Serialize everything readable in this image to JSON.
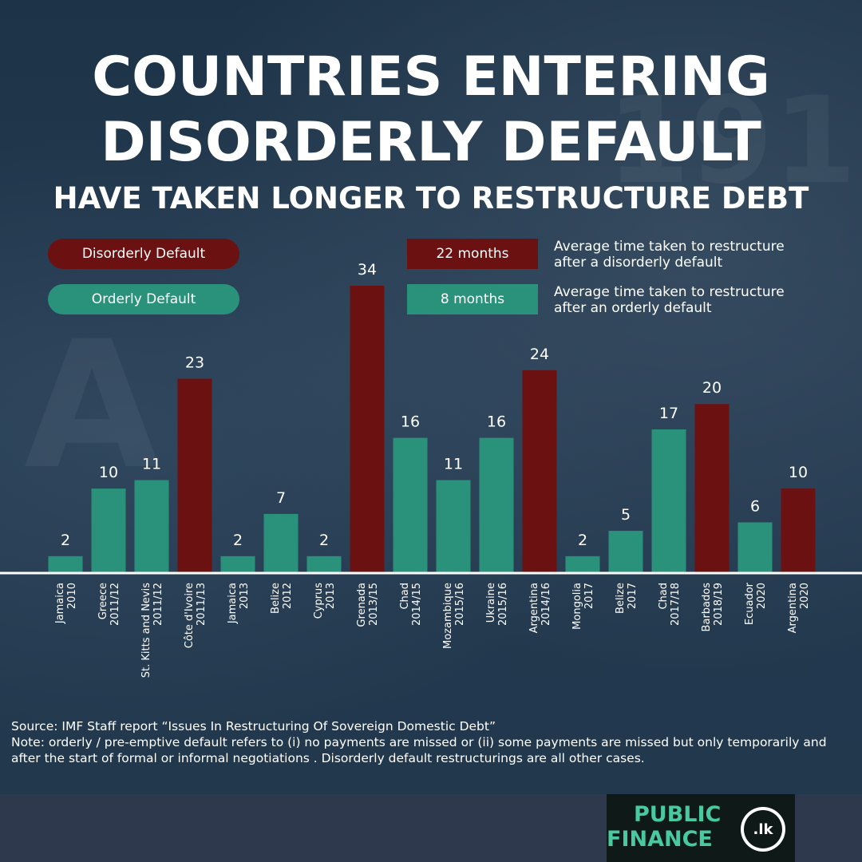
{
  "title": {
    "line1": "COUNTRIES ENTERING",
    "line2": "DISORDERLY DEFAULT",
    "subtitle": "HAVE TAKEN LONGER TO RESTRUCTURE DEBT"
  },
  "legend": {
    "disorderly_label": "Disorderly Default",
    "orderly_label": "Orderly Default",
    "disorderly_avg": "22 months",
    "orderly_avg": "8 months",
    "disorderly_desc_line1": "Average time taken to restructure",
    "disorderly_desc_line2": "after a disorderly default",
    "orderly_desc_line1": "Average time taken to restructure",
    "orderly_desc_line2": "after an orderly default"
  },
  "colors": {
    "disorderly": "#6b1112",
    "orderly": "#2a917a",
    "background": "#1f3448",
    "footer": "#2e394d",
    "logo_green": "#49c9a0"
  },
  "chart_data": {
    "type": "bar",
    "title": "COUNTRIES ENTERING DISORDERLY DEFAULT HAVE TAKEN LONGER TO RESTRUCTURE DEBT",
    "xlabel": "",
    "ylabel": "",
    "ylim": [
      0,
      34
    ],
    "grid": false,
    "legend_position": "top-left",
    "series_names": [
      "Disorderly Default",
      "Orderly Default"
    ],
    "categories": [
      {
        "country": "Jamaica",
        "period": "2010"
      },
      {
        "country": "Greece",
        "period": "2011/12"
      },
      {
        "country": "St. Kitts and Nevis",
        "period": "2011/12"
      },
      {
        "country": "Côte d'Ivoire",
        "period": "2011/13"
      },
      {
        "country": "Jamaica",
        "period": "2013"
      },
      {
        "country": "Belize",
        "period": "2012"
      },
      {
        "country": "Cyprus",
        "period": "2013"
      },
      {
        "country": "Grenada",
        "period": "2013/15"
      },
      {
        "country": "Chad",
        "period": "2014/15"
      },
      {
        "country": "Mozambique",
        "period": "2015/16"
      },
      {
        "country": "Ukraine",
        "period": "2015/16"
      },
      {
        "country": "Argentina",
        "period": "2014/16"
      },
      {
        "country": "Mongolia",
        "period": "2017"
      },
      {
        "country": "Belize",
        "period": "2017"
      },
      {
        "country": "Chad",
        "period": "2017/18"
      },
      {
        "country": "Barbados",
        "period": "2018/19"
      },
      {
        "country": "Ecuador",
        "period": "2020"
      },
      {
        "country": "Argentina",
        "period": "2020"
      }
    ],
    "values": [
      2,
      10,
      11,
      23,
      2,
      7,
      2,
      34,
      16,
      11,
      16,
      24,
      2,
      5,
      17,
      20,
      6,
      10
    ],
    "types": [
      "orderly",
      "orderly",
      "orderly",
      "disorderly",
      "orderly",
      "orderly",
      "orderly",
      "disorderly",
      "orderly",
      "orderly",
      "orderly",
      "disorderly",
      "orderly",
      "orderly",
      "orderly",
      "disorderly",
      "orderly",
      "disorderly"
    ]
  },
  "source": {
    "line": "Source: IMF Staff report “Issues In Restructuring Of Sovereign Domestic Debt”",
    "note": "Note: orderly / pre-emptive default refers to (i) no payments are missed or (ii) some payments are missed but only temporarily and after the start of formal or informal negotiations . Disorderly default restructurings are all other cases."
  },
  "logo": {
    "line1": "PUBLIC",
    "line2": "FINANCE",
    "seal": ".lk"
  }
}
